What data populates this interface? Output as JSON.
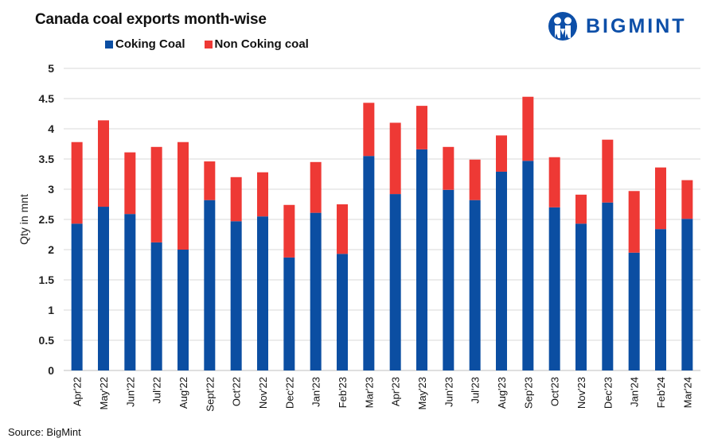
{
  "header": {
    "title": "Canada coal exports month-wise",
    "brand": "BIGMINT",
    "brand_icon": "bigmint-people-logo-icon"
  },
  "footer": {
    "source": "Source: BigMint"
  },
  "colors": {
    "coking": "#0b4ea2",
    "non_coking": "#ee3935",
    "grid": "#d9d9d9",
    "brand": "#0d4fa8"
  },
  "chart_data": {
    "type": "bar",
    "stacked": true,
    "title": "Canada coal exports month-wise",
    "xlabel": "",
    "ylabel": "Qty in mnt",
    "ylim": [
      0,
      5
    ],
    "yticks": [
      "0",
      "0.5",
      "1",
      "1.5",
      "2",
      "2.5",
      "3",
      "3.5",
      "4",
      "4.5",
      "5"
    ],
    "ytick_values": [
      0,
      0.5,
      1,
      1.5,
      2,
      2.5,
      3,
      3.5,
      4,
      4.5,
      5
    ],
    "grid": true,
    "legend_position": "top",
    "categories": [
      "Apr'22",
      "May'22",
      "Jun'22",
      "Jul'22",
      "Aug'22",
      "Sept'22",
      "Oct'22",
      "Nov'22",
      "Dec'22",
      "Jan'23",
      "Feb'23",
      "Mar'23",
      "Apr'23",
      "May'23",
      "Jun'23",
      "Jul'23",
      "Aug'23",
      "Sep'23",
      "Oct'23",
      "Nov'23",
      "Dec'23",
      "Jan'24",
      "Feb'24",
      "Mar'24"
    ],
    "series": [
      {
        "name": "Coking Coal",
        "color": "#0b4ea2",
        "values": [
          2.43,
          2.71,
          2.59,
          2.12,
          2.0,
          2.82,
          2.47,
          2.55,
          1.87,
          2.61,
          1.93,
          3.55,
          2.92,
          3.66,
          2.99,
          2.82,
          3.29,
          3.47,
          2.7,
          2.43,
          2.78,
          1.95,
          2.34,
          2.51
        ]
      },
      {
        "name": "Non Coking coal",
        "color": "#ee3935",
        "values": [
          1.35,
          1.43,
          1.02,
          1.58,
          1.78,
          0.64,
          0.73,
          0.73,
          0.87,
          0.84,
          0.82,
          0.88,
          1.18,
          0.72,
          0.71,
          0.67,
          0.6,
          1.06,
          0.83,
          0.48,
          1.04,
          1.02,
          1.02,
          0.64
        ]
      }
    ]
  }
}
